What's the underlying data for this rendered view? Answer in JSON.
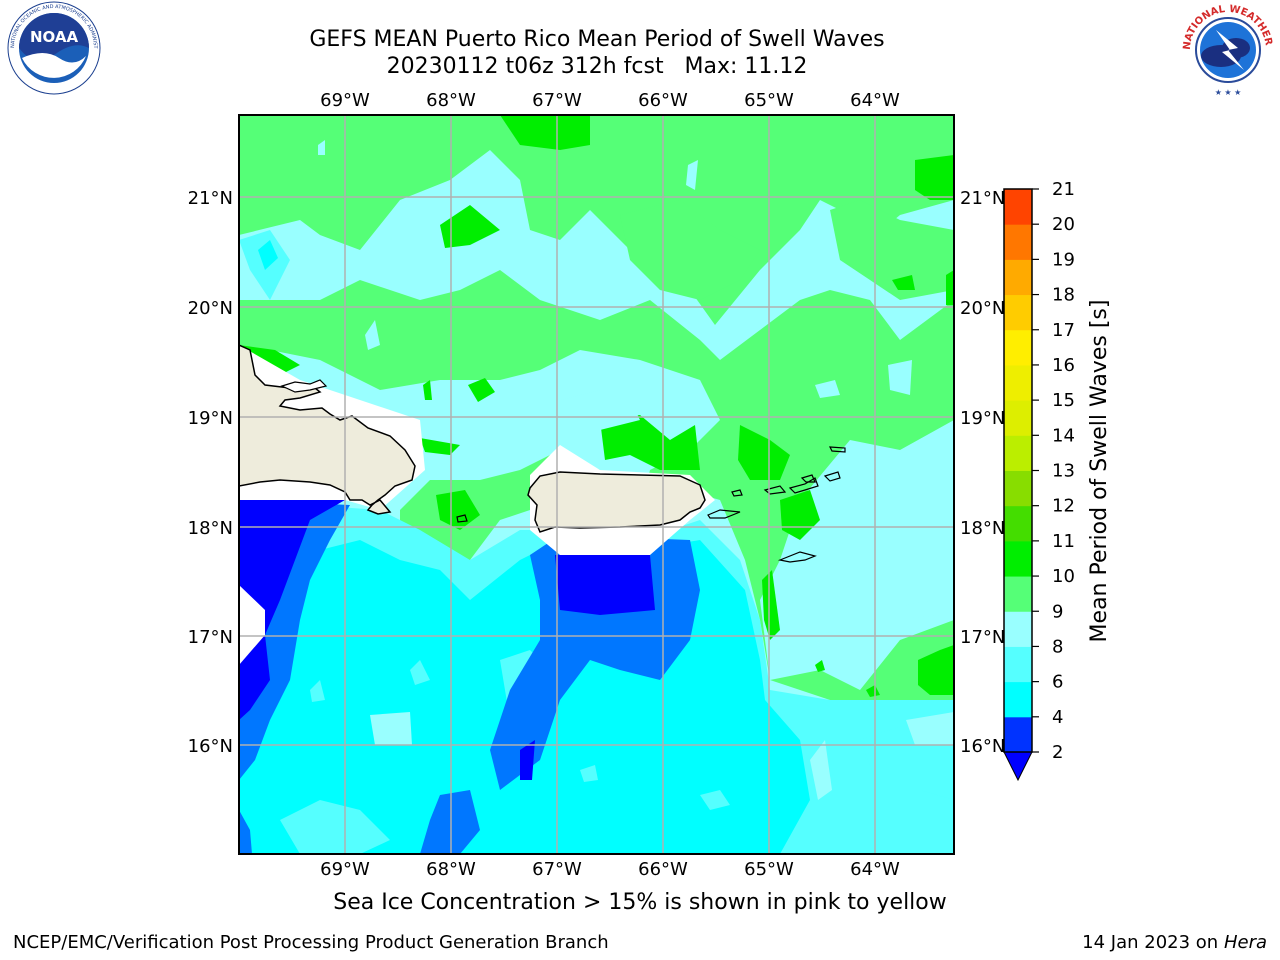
{
  "title_line1": "GEFS MEAN Puerto Rico Mean Period of Swell Waves",
  "title_line2": "20230112 t06z 312h fcst   Max: 11.12",
  "lon_labels": [
    "69°W",
    "68°W",
    "67°W",
    "66°W",
    "65°W",
    "64°W"
  ],
  "lat_labels": [
    "21°N",
    "20°N",
    "19°N",
    "18°N",
    "17°N",
    "16°N"
  ],
  "colorbar": {
    "label": "Mean Period of Swell Waves [s]",
    "ticks": [
      "2",
      "4",
      "6",
      "8",
      "9",
      "10",
      "11",
      "12",
      "13",
      "14",
      "15",
      "16",
      "17",
      "18",
      "19",
      "20",
      "21"
    ],
    "colors": [
      "#0033ff",
      "#00ffff",
      "#55ffff",
      "#99ffff",
      "#55ff77",
      "#00ee00",
      "#44dd00",
      "#88dd00",
      "#bbee00",
      "#ddee00",
      "#eeee00",
      "#ffee00",
      "#ffcc00",
      "#ffaa00",
      "#ff7700",
      "#ff4400",
      "#ff0000"
    ],
    "under_color": "#0000ff"
  },
  "noaa_logo_text": "NOAA",
  "noaa_ring_text": "NATIONAL OCEANIC AND ATMOSPHERIC ADMINISTRATION · U.S. DEPARTMENT OF COMMERCE",
  "nws_ring_text": "NATIONAL WEATHER SERVICE",
  "caption": "Sea Ice Concentration > 15% is shown in pink to yellow",
  "footer_left": "NCEP/EMC/Verification Post Processing Product Generation Branch",
  "footer_right_date": "14 Jan 2023 on ",
  "footer_right_host": "Hera"
}
